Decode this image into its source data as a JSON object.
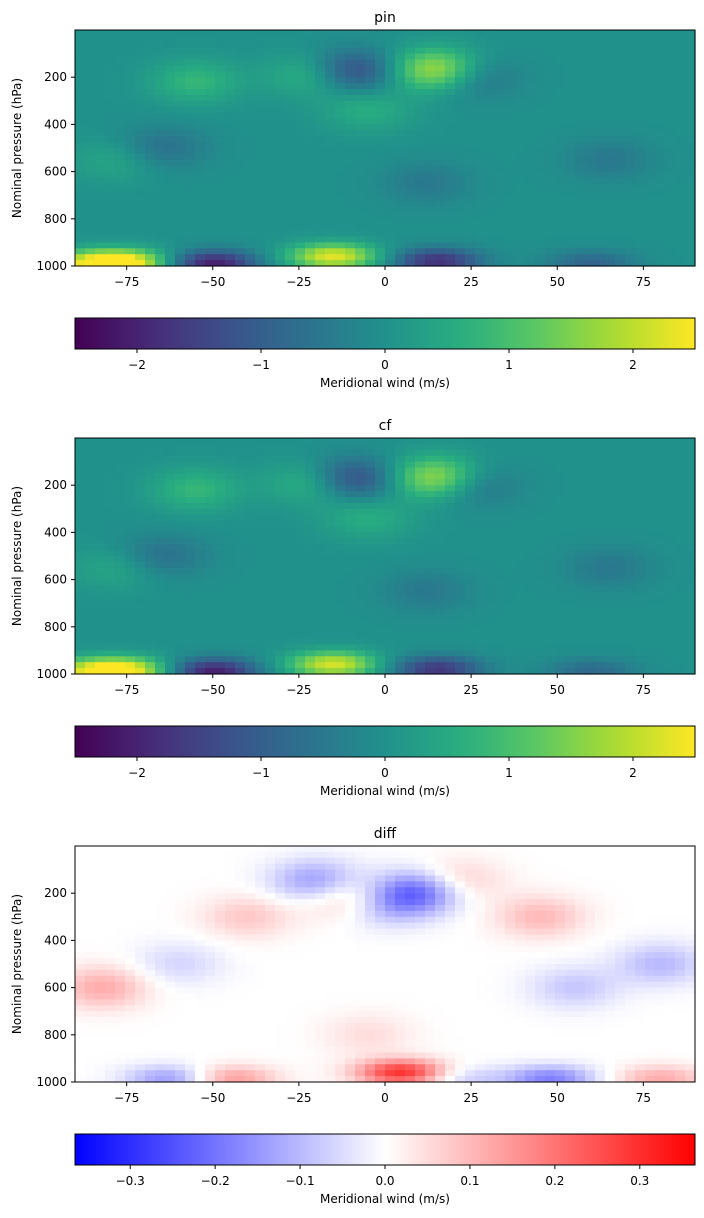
{
  "chart_data": [
    {
      "type": "heatmap",
      "title": "pin",
      "ylabel": "Nominal pressure (hPa)",
      "xlim": [
        -90,
        90
      ],
      "ylim": [
        1000,
        0
      ],
      "x_ticks": [
        "−75",
        "−50",
        "−25",
        "0",
        "25",
        "50",
        "75"
      ],
      "x_tick_values": [
        -75,
        -50,
        -25,
        0,
        25,
        50,
        75
      ],
      "y_ticks": [
        "200",
        "400",
        "600",
        "800",
        "1000"
      ],
      "y_tick_values": [
        200,
        400,
        600,
        800,
        1000
      ],
      "colormap": "viridis",
      "features": [
        {
          "lat": -20,
          "p": 190,
          "value": 1.0
        },
        {
          "lat": -55,
          "p": 220,
          "value": 0.8
        },
        {
          "lat": -10,
          "p": 175,
          "value": -1.6
        },
        {
          "lat": 15,
          "p": 170,
          "value": 2.0
        },
        {
          "lat": 25,
          "p": 200,
          "value": -0.8
        },
        {
          "lat": -5,
          "p": 340,
          "value": 0.6
        },
        {
          "lat": -65,
          "p": 500,
          "value": -0.7
        },
        {
          "lat": -78,
          "p": 550,
          "value": 0.5
        },
        {
          "lat": 12,
          "p": 650,
          "value": -0.5
        },
        {
          "lat": 65,
          "p": 550,
          "value": -0.5
        },
        {
          "lat": -75,
          "p": 985,
          "value": 2.2
        },
        {
          "lat": -50,
          "p": 990,
          "value": -2.1
        },
        {
          "lat": -15,
          "p": 960,
          "value": 2.3
        },
        {
          "lat": 15,
          "p": 980,
          "value": -1.8
        },
        {
          "lat": 60,
          "p": 990,
          "value": -0.9
        },
        {
          "lat": -85,
          "p": 990,
          "value": 1.8
        }
      ],
      "colorbar": {
        "label": "Meridional wind (m/s)",
        "range": [
          -2.5,
          2.5
        ],
        "ticks": [
          "−2",
          "−1",
          "0",
          "1",
          "2"
        ],
        "tick_values": [
          -2,
          -1,
          0,
          1,
          2
        ]
      }
    },
    {
      "type": "heatmap",
      "title": "cf",
      "ylabel": "Nominal pressure (hPa)",
      "xlim": [
        -90,
        90
      ],
      "ylim": [
        1000,
        0
      ],
      "x_ticks": [
        "−75",
        "−50",
        "−25",
        "0",
        "25",
        "50",
        "75"
      ],
      "x_tick_values": [
        -75,
        -50,
        -25,
        0,
        25,
        50,
        75
      ],
      "y_ticks": [
        "200",
        "400",
        "600",
        "800",
        "1000"
      ],
      "y_tick_values": [
        200,
        400,
        600,
        800,
        1000
      ],
      "colormap": "viridis",
      "features": [
        {
          "lat": -20,
          "p": 190,
          "value": 1.0
        },
        {
          "lat": -55,
          "p": 220,
          "value": 0.8
        },
        {
          "lat": -10,
          "p": 175,
          "value": -1.6
        },
        {
          "lat": 15,
          "p": 170,
          "value": 1.9
        },
        {
          "lat": 25,
          "p": 200,
          "value": -0.8
        },
        {
          "lat": -5,
          "p": 340,
          "value": 0.6
        },
        {
          "lat": -65,
          "p": 500,
          "value": -0.7
        },
        {
          "lat": -78,
          "p": 550,
          "value": 0.5
        },
        {
          "lat": 12,
          "p": 650,
          "value": -0.5
        },
        {
          "lat": 65,
          "p": 550,
          "value": -0.5
        },
        {
          "lat": -75,
          "p": 985,
          "value": 2.1
        },
        {
          "lat": -50,
          "p": 990,
          "value": -2.1
        },
        {
          "lat": -15,
          "p": 960,
          "value": 2.2
        },
        {
          "lat": 15,
          "p": 980,
          "value": -1.7
        },
        {
          "lat": 60,
          "p": 990,
          "value": -0.8
        },
        {
          "lat": -85,
          "p": 990,
          "value": 1.7
        }
      ],
      "colorbar": {
        "label": "Meridional wind (m/s)",
        "range": [
          -2.5,
          2.5
        ],
        "ticks": [
          "−2",
          "−1",
          "0",
          "1",
          "2"
        ],
        "tick_values": [
          -2,
          -1,
          0,
          1,
          2
        ]
      }
    },
    {
      "type": "heatmap",
      "title": "diff",
      "ylabel": "Nominal pressure (hPa)",
      "xlim": [
        -90,
        90
      ],
      "ylim": [
        1000,
        0
      ],
      "x_ticks": [
        "−75",
        "−50",
        "−25",
        "0",
        "25",
        "50",
        "75"
      ],
      "x_tick_values": [
        -75,
        -50,
        -25,
        0,
        25,
        50,
        75
      ],
      "y_ticks": [
        "200",
        "400",
        "600",
        "800",
        "1000"
      ],
      "y_tick_values": [
        200,
        400,
        600,
        800,
        1000
      ],
      "colormap": "bwr",
      "features": [
        {
          "lat": -82,
          "p": 600,
          "value": 0.12
        },
        {
          "lat": -60,
          "p": 500,
          "value": -0.06
        },
        {
          "lat": -40,
          "p": 300,
          "value": 0.08
        },
        {
          "lat": -20,
          "p": 150,
          "value": -0.15
        },
        {
          "lat": -10,
          "p": 220,
          "value": 0.12
        },
        {
          "lat": 10,
          "p": 190,
          "value": -0.22
        },
        {
          "lat": 0,
          "p": 250,
          "value": -0.12
        },
        {
          "lat": 20,
          "p": 150,
          "value": 0.1
        },
        {
          "lat": 45,
          "p": 300,
          "value": 0.1
        },
        {
          "lat": 55,
          "p": 600,
          "value": -0.08
        },
        {
          "lat": 80,
          "p": 500,
          "value": -0.1
        },
        {
          "lat": -5,
          "p": 800,
          "value": 0.05
        },
        {
          "lat": 5,
          "p": 960,
          "value": 0.3
        },
        {
          "lat": -45,
          "p": 985,
          "value": 0.15
        },
        {
          "lat": -62,
          "p": 985,
          "value": -0.15
        },
        {
          "lat": 48,
          "p": 985,
          "value": -0.18
        },
        {
          "lat": 80,
          "p": 985,
          "value": 0.12
        },
        {
          "lat": 22,
          "p": 985,
          "value": -0.08
        }
      ],
      "colorbar": {
        "label": "Meridional wind (m/s)",
        "range": [
          -0.365,
          0.365
        ],
        "ticks": [
          "−0.3",
          "−0.2",
          "−0.1",
          "0.0",
          "0.1",
          "0.2",
          "0.3"
        ],
        "tick_values": [
          -0.3,
          -0.2,
          -0.1,
          0.0,
          0.1,
          0.2,
          0.3
        ]
      }
    }
  ]
}
